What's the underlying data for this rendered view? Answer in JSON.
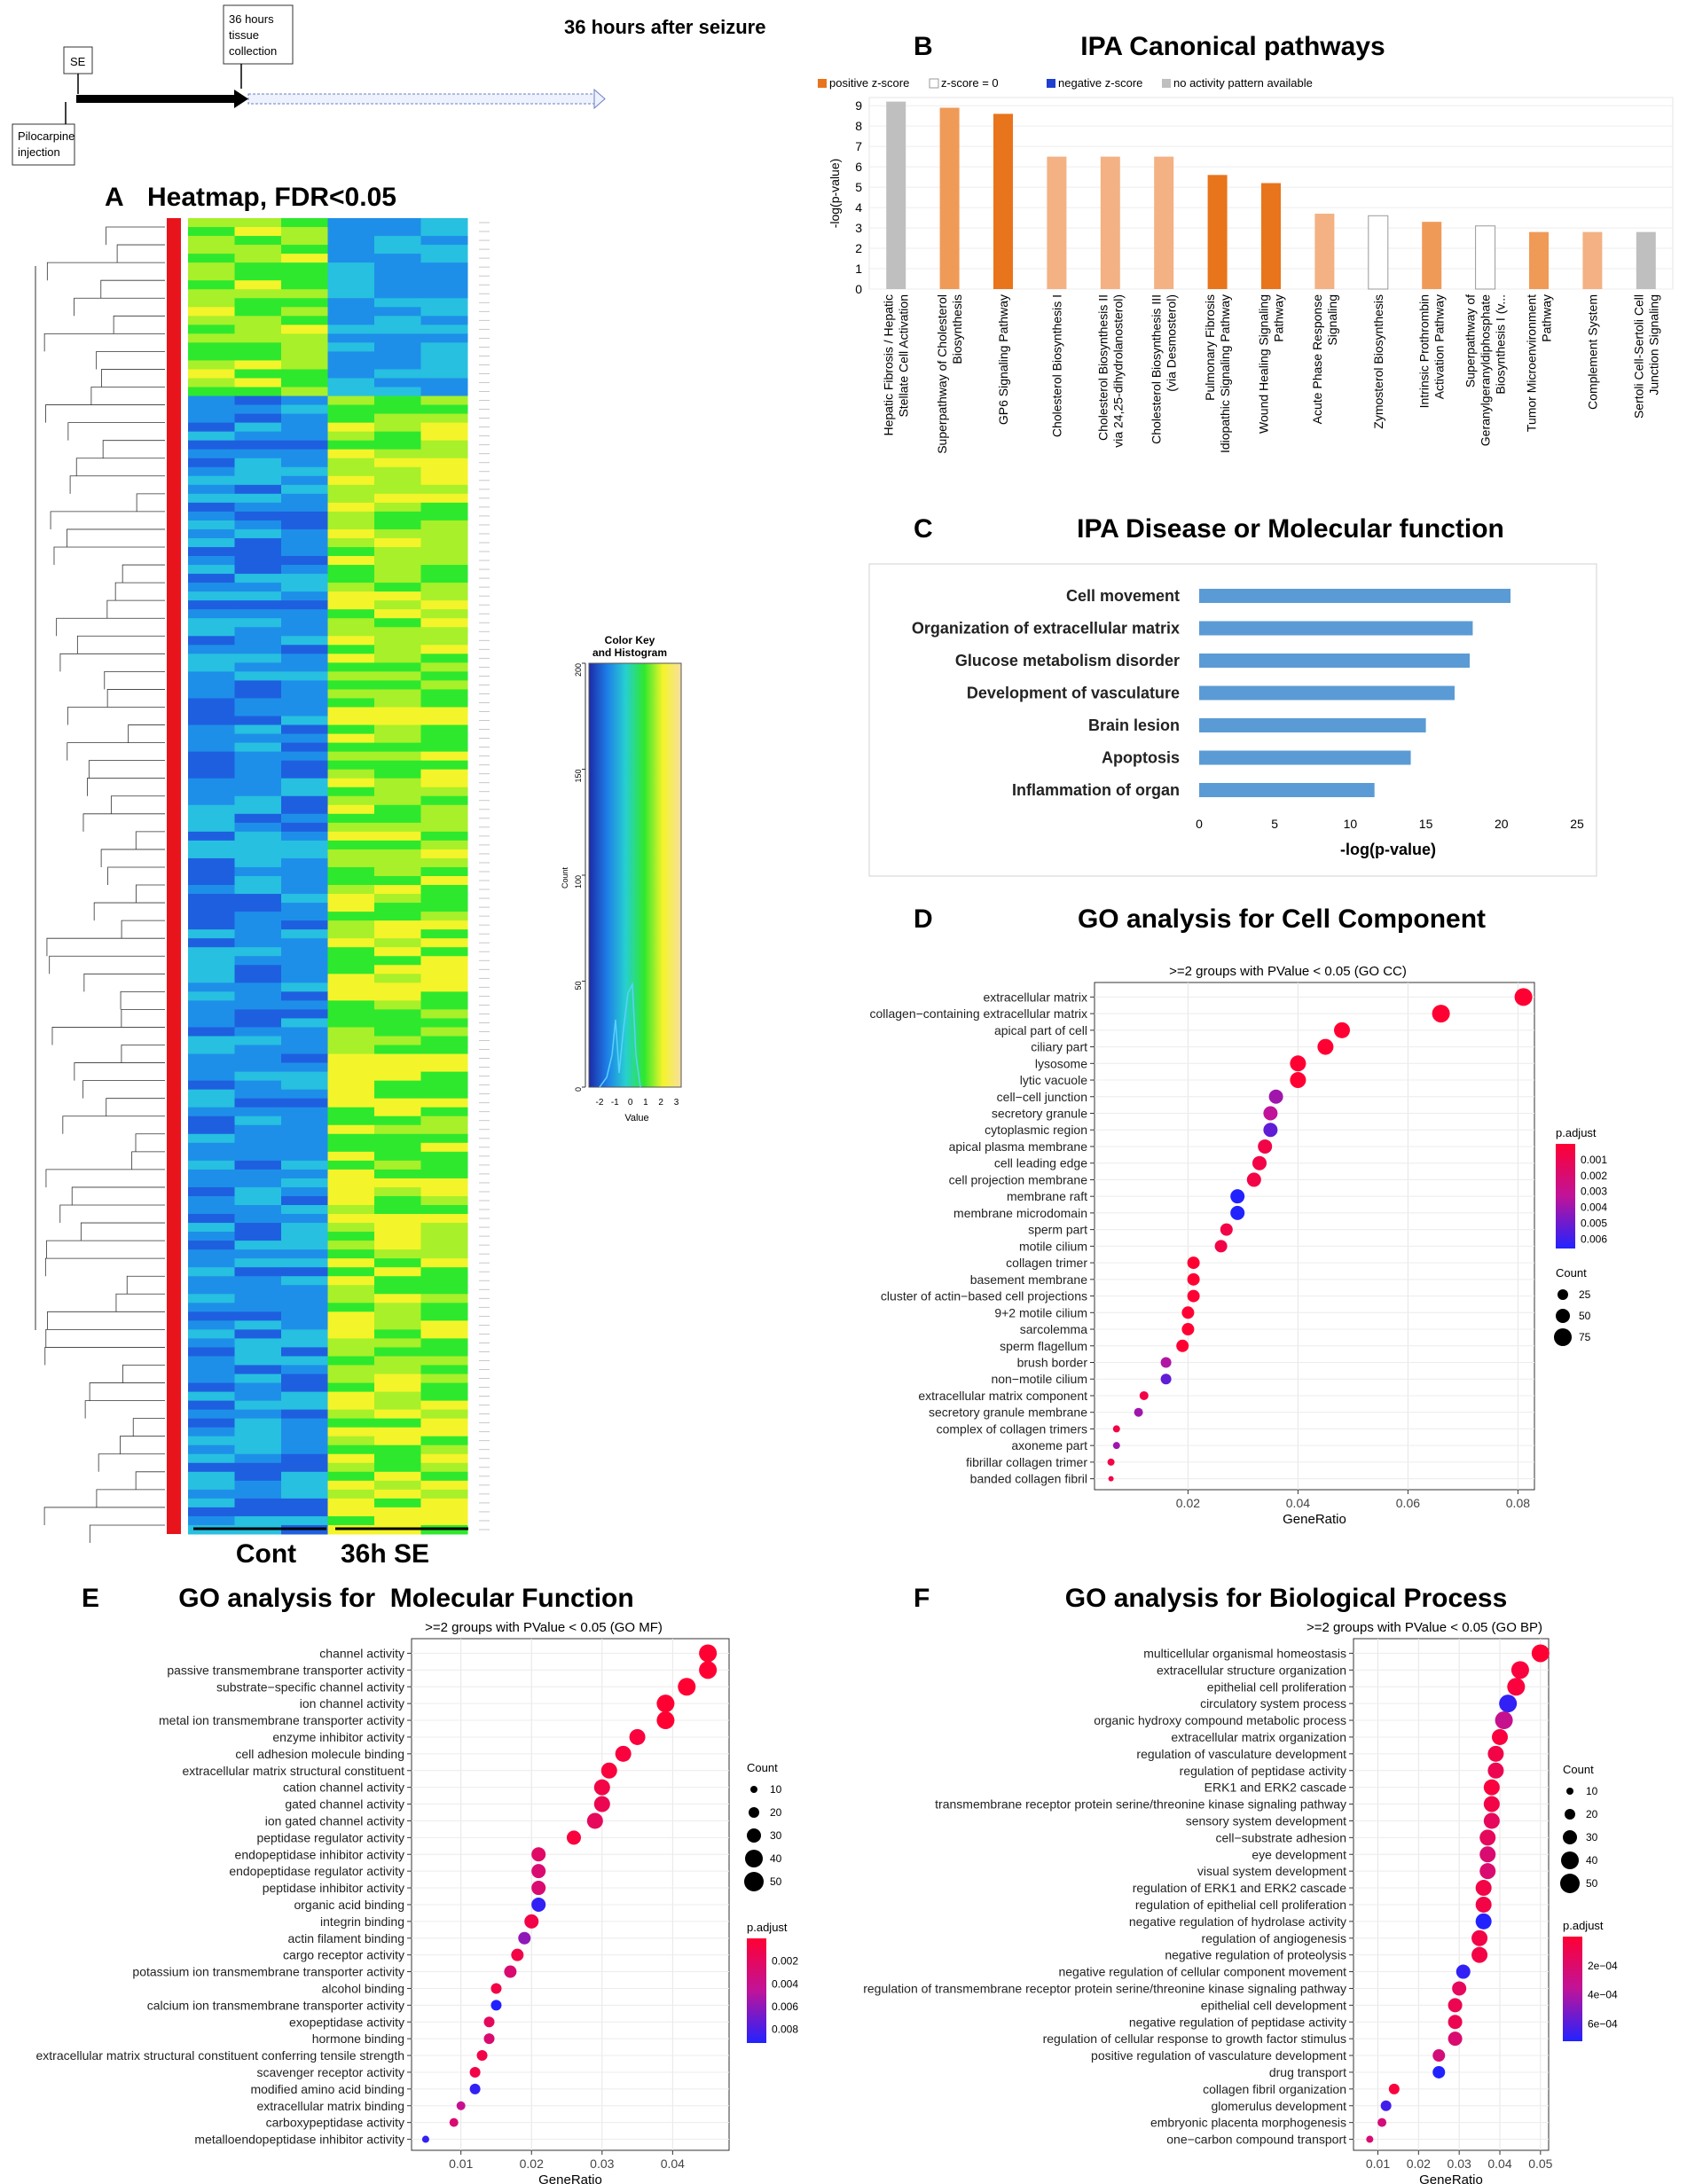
{
  "figure_title": "36 hours after seizure",
  "timeline": {
    "se": "SE",
    "collect_line1": "36 hours",
    "collect_line2": "tissue",
    "collect_line3": "collection",
    "pilo_line1": "Pilocarpine",
    "pilo_line2": "injection"
  },
  "colors": {
    "positive": "#e8741c",
    "positive_light": "#f4b183",
    "positive_mid": "#f09a58",
    "zero": "#ffffff",
    "negative": "#1f3fcf",
    "gray": "#bfbfbf",
    "bar_blue": "#5b9bd5",
    "dot_high": "#ff0033",
    "dot_low": "#2222ff"
  },
  "chart_data": [
    {
      "panel": "A",
      "type": "heatmap",
      "title": "Heatmap, FDR<0.05",
      "groups": [
        "Cont",
        "36h SE"
      ],
      "colorkey_title_line1": "Color Key",
      "colorkey_title_line2": "and Histogram",
      "colorkey_xlabel": "Value",
      "colorkey_ylabel": "Count",
      "colorkey_xticks": [
        "-2",
        "-1",
        "0",
        "1",
        "2",
        "3"
      ],
      "colorkey_yticks": [
        "0",
        "50",
        "100",
        "150",
        "200"
      ],
      "row_labels_note": "gene labels rendered too small to read"
    },
    {
      "panel": "B",
      "type": "bar",
      "title": "IPA Canonical pathways",
      "legend": [
        "positive z-score",
        "z-score = 0",
        "negative z-score",
        "no activity pattern available"
      ],
      "ylabel": "-log(p-value)",
      "ylim": [
        0,
        9
      ],
      "yticks": [
        "0",
        "1",
        "2",
        "3",
        "4",
        "5",
        "6",
        "7",
        "8",
        "9"
      ],
      "categories": [
        [
          "Hepatic Fibrosis / Hepatic",
          "Stellate Cell Activation"
        ],
        [
          "Superpathway of Cholesterol",
          "Biosynthesis"
        ],
        [
          "GP6 Signaling Pathway"
        ],
        [
          "Cholesterol Biosynthesis I"
        ],
        [
          "Cholesterol Biosynthesis II",
          "via 24,25-dihydrolanosterol)"
        ],
        [
          "Cholesterol Biosynthesis III",
          "(via Desmosterol)"
        ],
        [
          "Pulmonary Fibrosis",
          "Idiopathic Signaling Pathway"
        ],
        [
          "Wound Healing Signaling",
          "Pathway"
        ],
        [
          "Acute Phase Response",
          "Signaling"
        ],
        [
          "Zymosterol Biosynthesis"
        ],
        [
          "Intrinsic Prothrombin",
          "Activation Pathway"
        ],
        [
          "Superpathway of",
          "Geranylgeranyldiphosphate",
          "Biosynthesis I (v..."
        ],
        [
          "Tumor Microenvironment",
          "Pathway"
        ],
        [
          "Complement System"
        ],
        [
          "Sertoli Cell-Sertoli Cell",
          "Junction Signaling"
        ]
      ],
      "values": [
        9.2,
        8.9,
        8.6,
        6.5,
        6.5,
        6.5,
        5.6,
        5.2,
        3.7,
        3.6,
        3.3,
        3.1,
        2.8,
        2.8,
        2.8
      ],
      "z_class": [
        "gray",
        "positive_mid",
        "positive",
        "positive_light",
        "positive_light",
        "positive_light",
        "positive",
        "positive",
        "positive_light",
        "zero",
        "positive_mid",
        "zero",
        "positive_mid",
        "positive_light",
        "gray"
      ]
    },
    {
      "panel": "C",
      "type": "bar",
      "orientation": "horizontal",
      "title": "IPA Disease or Molecular function",
      "categories": [
        "Cell movement",
        "Organization of extracellular matrix",
        "Glucose metabolism disorder",
        "Development of vasculature",
        "Brain lesion",
        "Apoptosis",
        "Inflammation of organ"
      ],
      "values": [
        20.6,
        18.1,
        17.9,
        16.9,
        15.0,
        14.0,
        11.6
      ],
      "xlabel": "-log(p-value)",
      "xlim": [
        0,
        25
      ],
      "xticks": [
        "0",
        "5",
        "10",
        "15",
        "20",
        "25"
      ]
    },
    {
      "panel": "D",
      "type": "scatter",
      "title": "GO analysis for Cell Component",
      "subtitle": ">=2 groups with PValue < 0.05 (GO CC)",
      "xlabel": "GeneRatio",
      "xlim": [
        0.003,
        0.083
      ],
      "xticks": [
        0.02,
        0.04,
        0.06,
        0.08
      ],
      "xtick_labels": [
        "0.02",
        "0.04",
        "0.06",
        "0.08"
      ],
      "legend_color_title": "p.adjust",
      "legend_color_labels": [
        "0.001",
        "0.002",
        "0.003",
        "0.004",
        "0.005",
        "0.006"
      ],
      "legend_size_title": "Count",
      "legend_size_labels": [
        "25",
        "50",
        "75"
      ],
      "categories": [
        "extracellular matrix",
        "collagen−containing extracellular matrix",
        "apical part of cell",
        "ciliary part",
        "lysosome",
        "lytic vacuole",
        "cell−cell junction",
        "secretory granule",
        "cytoplasmic region",
        "apical plasma membrane",
        "cell leading edge",
        "cell projection membrane",
        "membrane raft",
        "membrane microdomain",
        "sperm part",
        "motile cilium",
        "collagen trimer",
        "basement membrane",
        "cluster of actin−based cell projections",
        "9+2 motile cilium",
        "sarcolemma",
        "sperm flagellum",
        "brush border",
        "non−motile cilium",
        "extracellular matrix component",
        "secretory granule membrane",
        "complex of collagen trimers",
        "axoneme part",
        "fibrillar collagen trimer",
        "banded collagen fibril"
      ],
      "x": [
        0.081,
        0.066,
        0.048,
        0.045,
        0.04,
        0.04,
        0.036,
        0.035,
        0.035,
        0.034,
        0.033,
        0.032,
        0.029,
        0.029,
        0.027,
        0.026,
        0.021,
        0.021,
        0.021,
        0.02,
        0.02,
        0.019,
        0.016,
        0.016,
        0.012,
        0.011,
        0.007,
        0.007,
        0.006,
        0.006
      ],
      "color_t": [
        0.0,
        0.0,
        0.0,
        0.0,
        0.0,
        0.0,
        0.6,
        0.5,
        0.8,
        0.1,
        0.1,
        0.1,
        1.0,
        1.0,
        0.1,
        0.1,
        0.0,
        0.0,
        0.0,
        0.0,
        0.0,
        0.0,
        0.55,
        0.8,
        0.1,
        0.6,
        0.1,
        0.6,
        0.1,
        0.1
      ],
      "size": [
        10,
        10,
        9,
        9,
        9,
        9,
        8,
        8,
        8,
        8,
        8,
        8,
        8,
        8,
        7,
        7,
        7,
        7,
        7,
        7,
        7,
        7,
        6,
        6,
        5,
        5,
        4,
        4,
        4,
        3
      ]
    },
    {
      "panel": "E",
      "type": "scatter",
      "title": "GO analysis for  Molecular Function",
      "subtitle": ">=2 groups with PValue < 0.05 (GO MF)",
      "xlabel": "GeneRatio",
      "xlim": [
        0.003,
        0.048
      ],
      "xticks": [
        0.01,
        0.02,
        0.03,
        0.04
      ],
      "xtick_labels": [
        "0.01",
        "0.02",
        "0.03",
        "0.04"
      ],
      "legend_color_title": "p.adjust",
      "legend_color_labels": [
        "0.002",
        "0.004",
        "0.006",
        "0.008"
      ],
      "legend_size_title": "Count",
      "legend_size_labels": [
        "10",
        "20",
        "30",
        "40",
        "50"
      ],
      "categories": [
        "channel activity",
        "passive transmembrane transporter activity",
        "substrate−specific channel activity",
        "ion channel activity",
        "metal ion transmembrane transporter activity",
        "enzyme inhibitor activity",
        "cell adhesion molecule binding",
        "extracellular matrix structural constituent",
        "cation channel activity",
        "gated channel activity",
        "ion gated channel activity",
        "peptidase regulator activity",
        "endopeptidase inhibitor activity",
        "endopeptidase regulator activity",
        "peptidase inhibitor activity",
        "organic acid binding",
        "integrin binding",
        "actin filament binding",
        "cargo receptor activity",
        "potassium ion transmembrane transporter activity",
        "alcohol binding",
        "calcium ion transmembrane transporter activity",
        "exopeptidase activity",
        "hormone binding",
        "extracellular matrix structural constituent conferring tensile strength",
        "scavenger receptor activity",
        "modified amino acid binding",
        "extracellular matrix binding",
        "carboxypeptidase activity",
        "metalloendopeptidase inhibitor activity"
      ],
      "x": [
        0.045,
        0.045,
        0.042,
        0.039,
        0.039,
        0.035,
        0.033,
        0.031,
        0.03,
        0.03,
        0.029,
        0.026,
        0.021,
        0.021,
        0.021,
        0.021,
        0.02,
        0.019,
        0.018,
        0.017,
        0.015,
        0.015,
        0.014,
        0.014,
        0.013,
        0.012,
        0.012,
        0.01,
        0.009,
        0.005
      ],
      "color_t": [
        0.0,
        0.0,
        0.0,
        0.0,
        0.0,
        0.05,
        0.05,
        0.05,
        0.1,
        0.15,
        0.2,
        0.05,
        0.25,
        0.3,
        0.3,
        0.95,
        0.1,
        0.65,
        0.1,
        0.3,
        0.1,
        1.0,
        0.2,
        0.3,
        0.1,
        0.1,
        0.95,
        0.45,
        0.3,
        0.95
      ],
      "size": [
        10,
        10,
        10,
        10,
        10,
        9,
        9,
        9,
        9,
        9,
        9,
        8,
        8,
        8,
        8,
        8,
        8,
        7,
        7,
        7,
        6,
        6,
        6,
        6,
        6,
        6,
        6,
        5,
        5,
        4
      ]
    },
    {
      "panel": "F",
      "type": "scatter",
      "title": "GO analysis for Biological Process",
      "subtitle": ">=2 groups with PValue < 0.05 (GO BP)",
      "xlabel": "GeneRatio",
      "xlim": [
        0.004,
        0.052
      ],
      "xticks": [
        0.01,
        0.02,
        0.03,
        0.04,
        0.05
      ],
      "xtick_labels": [
        "0.01",
        "0.02",
        "0.03",
        "0.04",
        "0.05"
      ],
      "legend_color_title": "p.adjust",
      "legend_color_labels": [
        "2e−04",
        "4e−04",
        "6e−04"
      ],
      "legend_size_title": "Count",
      "legend_size_labels": [
        "10",
        "20",
        "30",
        "40",
        "50"
      ],
      "categories": [
        "multicellular organismal homeostasis",
        "extracellular structure organization",
        "epithelial cell proliferation",
        "circulatory system process",
        "organic hydroxy compound metabolic process",
        "extracellular matrix organization",
        "regulation of vasculature development",
        "regulation of peptidase activity",
        "ERK1 and ERK2 cascade",
        "transmembrane receptor protein serine/threonine kinase signaling pathway",
        "sensory system development",
        "cell−substrate adhesion",
        "eye development",
        "visual system development",
        "regulation of ERK1 and ERK2 cascade",
        "regulation of epithelial cell proliferation",
        "negative regulation of hydrolase activity",
        "regulation of angiogenesis",
        "negative regulation of proteolysis",
        "negative regulation of cellular component movement",
        "regulation of transmembrane receptor protein serine/threonine kinase signaling pathway",
        "epithelial cell development",
        "negative regulation of peptidase activity",
        "regulation of cellular response to growth factor stimulus",
        "positive regulation of vasculature development",
        "drug transport",
        "collagen fibril organization",
        "glomerulus development",
        "embryonic placenta morphogenesis",
        "one−carbon compound transport"
      ],
      "x": [
        0.05,
        0.045,
        0.044,
        0.042,
        0.041,
        0.04,
        0.039,
        0.039,
        0.038,
        0.038,
        0.038,
        0.037,
        0.037,
        0.037,
        0.036,
        0.036,
        0.036,
        0.035,
        0.035,
        0.031,
        0.03,
        0.029,
        0.029,
        0.029,
        0.025,
        0.025,
        0.014,
        0.012,
        0.011,
        0.008
      ],
      "color_t": [
        0.0,
        0.05,
        0.05,
        0.95,
        0.45,
        0.05,
        0.1,
        0.15,
        0.05,
        0.1,
        0.2,
        0.2,
        0.3,
        0.3,
        0.1,
        0.1,
        1.0,
        0.1,
        0.1,
        0.95,
        0.2,
        0.15,
        0.15,
        0.3,
        0.35,
        1.0,
        0.05,
        0.9,
        0.35,
        0.3
      ],
      "size": [
        10,
        10,
        10,
        10,
        10,
        9,
        9,
        9,
        9,
        9,
        9,
        9,
        9,
        9,
        9,
        9,
        9,
        9,
        9,
        8,
        8,
        8,
        8,
        8,
        7,
        7,
        6,
        6,
        5,
        4
      ]
    }
  ],
  "panel_letters": [
    "A",
    "B",
    "C",
    "D",
    "E",
    "F"
  ]
}
